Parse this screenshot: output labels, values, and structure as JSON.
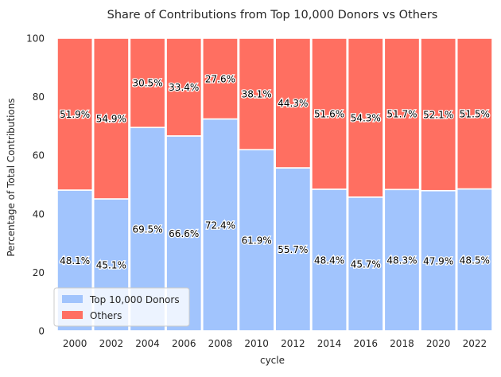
{
  "chart_data": {
    "type": "bar",
    "stacked": true,
    "title": "Share of Contributions from Top 10,000 Donors vs Others",
    "xlabel": "cycle",
    "ylabel": "Percentage of Total Contributions",
    "ylim": [
      0,
      100
    ],
    "yticks": [
      0,
      20,
      40,
      60,
      80,
      100
    ],
    "categories": [
      "2000",
      "2002",
      "2004",
      "2006",
      "2008",
      "2010",
      "2012",
      "2014",
      "2016",
      "2018",
      "2020",
      "2022"
    ],
    "series": [
      {
        "name": "Top 10,000 Donors",
        "color": "#a1c4fd",
        "values": [
          48.1,
          45.1,
          69.5,
          66.6,
          72.4,
          61.9,
          55.7,
          48.4,
          45.7,
          48.3,
          47.9,
          48.5
        ],
        "labels": [
          "48.1%",
          "45.1%",
          "69.5%",
          "66.6%",
          "72.4%",
          "61.9%",
          "55.7%",
          "48.4%",
          "45.7%",
          "48.3%",
          "47.9%",
          "48.5%"
        ]
      },
      {
        "name": "Others",
        "color": "#ff6f61",
        "values": [
          51.9,
          54.9,
          30.5,
          33.4,
          27.6,
          38.1,
          44.3,
          51.6,
          54.3,
          51.7,
          52.1,
          51.5
        ],
        "labels": [
          "51.9%",
          "54.9%",
          "30.5%",
          "33.4%",
          "27.6%",
          "38.1%",
          "44.3%",
          "51.6%",
          "54.3%",
          "51.7%",
          "52.1%",
          "51.5%"
        ]
      }
    ],
    "grid": false,
    "legend": "lower-left"
  }
}
